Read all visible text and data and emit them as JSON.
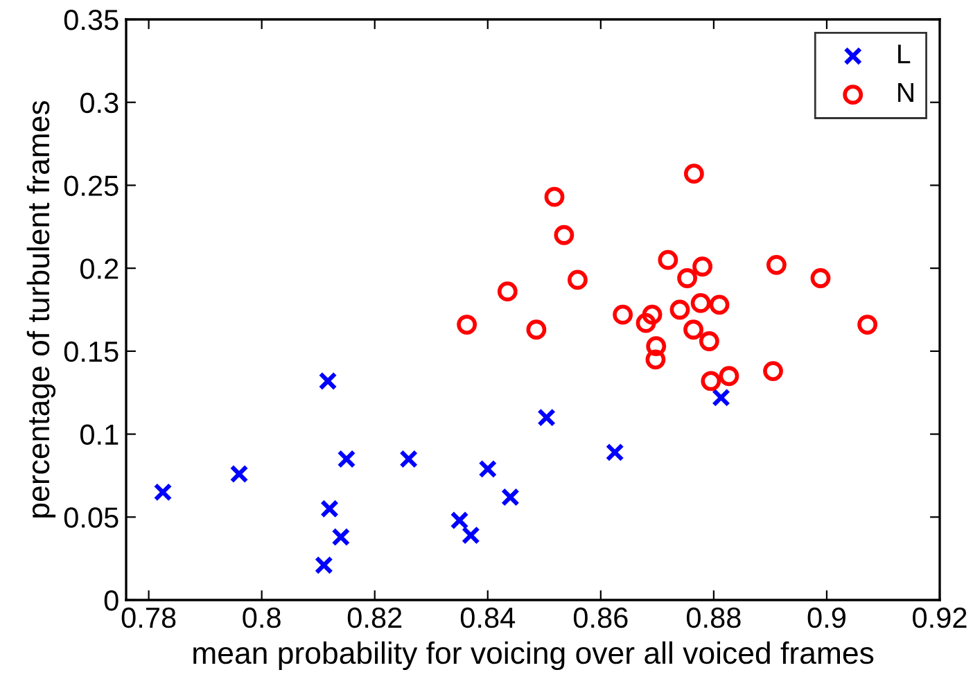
{
  "chart_data": {
    "type": "scatter",
    "xlabel": "mean probability for voicing over all voiced frames",
    "ylabel": "percentage of turbulent frames",
    "xlim": [
      0.776,
      0.92
    ],
    "xticks": [
      0.78,
      0.8,
      0.82,
      0.84,
      0.86,
      0.88,
      0.9,
      0.92
    ],
    "ylim": [
      0,
      0.35
    ],
    "yticks": [
      0,
      0.05,
      0.1,
      0.15,
      0.2,
      0.25,
      0.3,
      0.35
    ],
    "grid": false,
    "legend": "top right",
    "series": [
      {
        "name": "L",
        "color": "#0000ff",
        "marker": "cross",
        "x": [
          0.7825,
          0.796,
          0.8117,
          0.815,
          0.812,
          0.814,
          0.811,
          0.826,
          0.84,
          0.835,
          0.837,
          0.844,
          0.8504,
          0.8625,
          0.8813
        ],
        "values": [
          0.065,
          0.076,
          0.132,
          0.085,
          0.055,
          0.038,
          0.021,
          0.085,
          0.079,
          0.048,
          0.039,
          0.062,
          0.11,
          0.089,
          0.122
        ]
      },
      {
        "name": "N",
        "color": "#ff0000",
        "marker": "circle",
        "x": [
          0.8363,
          0.8435,
          0.8486,
          0.8518,
          0.8535,
          0.8559,
          0.8639,
          0.868,
          0.8691,
          0.8698,
          0.8697,
          0.8719,
          0.874,
          0.8753,
          0.8765,
          0.8777,
          0.878,
          0.8764,
          0.881,
          0.8792,
          0.8795,
          0.8827,
          0.8905,
          0.8911,
          0.8989,
          0.9072
        ],
        "values": [
          0.166,
          0.186,
          0.163,
          0.243,
          0.22,
          0.193,
          0.172,
          0.167,
          0.172,
          0.153,
          0.145,
          0.205,
          0.175,
          0.194,
          0.257,
          0.179,
          0.201,
          0.163,
          0.178,
          0.156,
          0.132,
          0.135,
          0.138,
          0.202,
          0.194,
          0.166
        ]
      }
    ]
  }
}
